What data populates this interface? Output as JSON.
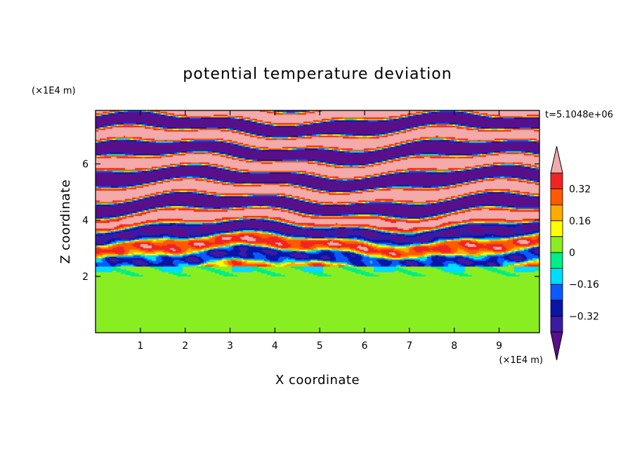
{
  "chart_data": {
    "type": "heatmap",
    "title": "potential temperature deviation",
    "xlabel": "X coordinate",
    "ylabel": "Z coordinate",
    "x_unit": "(×1E4 m)",
    "z_unit": "(×1E4 m)",
    "time_label": "t=5.1048e+06",
    "xlim": [
      0,
      9.9
    ],
    "ylim": [
      0,
      7.9
    ],
    "x_ticks": [
      "1",
      "2",
      "3",
      "4",
      "5",
      "6",
      "7",
      "8",
      "9"
    ],
    "y_ticks": [
      "2",
      "4",
      "6"
    ],
    "colorbar": {
      "levels": [
        -0.4,
        -0.32,
        -0.24,
        -0.16,
        -0.08,
        0,
        0.08,
        0.16,
        0.24,
        0.32,
        0.4
      ],
      "colors": [
        "#5a0f8a",
        "#3c1aa3",
        "#0a14a5",
        "#0a5aff",
        "#00dcff",
        "#00ee88",
        "#88ee22",
        "#ffff00",
        "#ffaa00",
        "#ff5a00",
        "#f02424",
        "#f2aaaa"
      ],
      "tick_labels": [
        "0.32",
        "0.16",
        "0",
        "−0.16",
        "−0.32"
      ],
      "tick_values": [
        0.32,
        0.16,
        0,
        -0.16,
        -0.32
      ],
      "extend": "both"
    }
  }
}
